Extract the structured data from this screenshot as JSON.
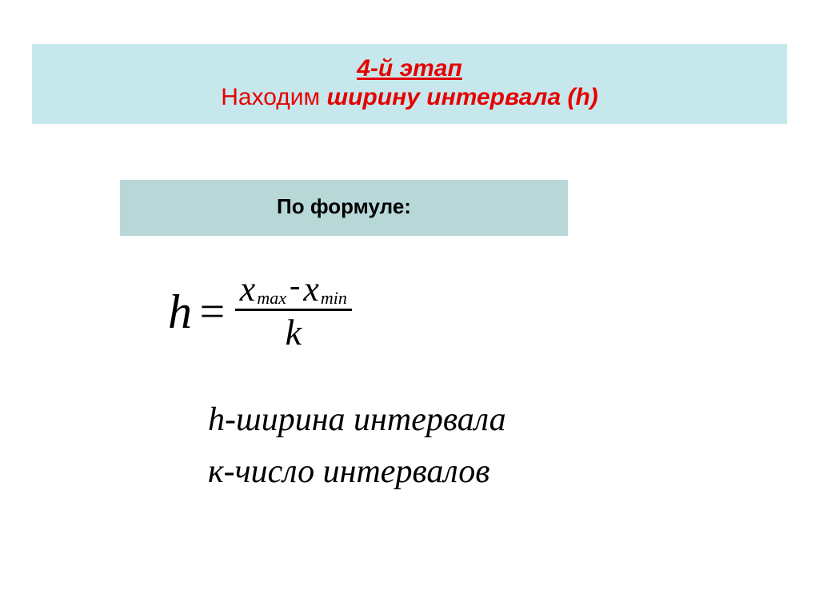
{
  "colors": {
    "background": "#ffffff",
    "header_band": "#c6e8ec",
    "formula_band": "#b8d8d8",
    "accent_red": "#e60000",
    "text": "#000000"
  },
  "typography": {
    "header_font": "Arial",
    "body_font": "Times New Roman",
    "header_title_pt": 30,
    "formula_label_pt": 26,
    "equation_pt": 56,
    "description_pt": 42
  },
  "header": {
    "title": "4-й этап",
    "subtitle_plain": "Находим ",
    "subtitle_emph": "ширину интервала (h)"
  },
  "formula": {
    "label": "По формуле:",
    "lhs": "h",
    "equals": "=",
    "num_x1": "x",
    "num_sub1": "max",
    "num_minus": "-",
    "num_x2": "x",
    "num_sub2": "min",
    "den": "k"
  },
  "descriptions": {
    "line1": "h-ширина интервала",
    "line2": "к-число интервалов"
  }
}
